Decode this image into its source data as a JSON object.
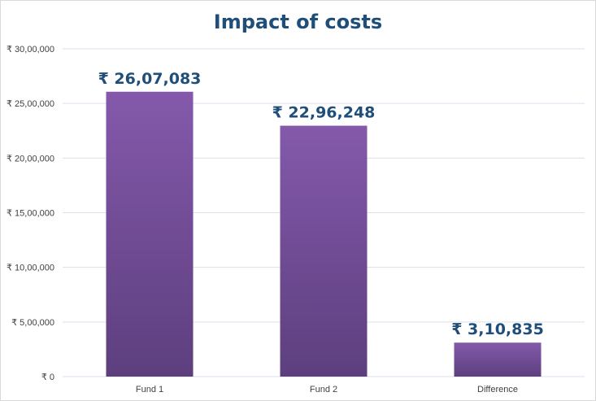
{
  "chart_data": {
    "type": "bar",
    "title": "Impact of costs",
    "categories": [
      "Fund 1",
      "Fund 2",
      "Difference"
    ],
    "values": [
      2607083,
      2296248,
      310835
    ],
    "data_labels": [
      "₹ 26,07,083",
      "₹ 22,96,248",
      "₹ 3,10,835"
    ],
    "y_ticks": [
      {
        "value": 0,
        "label": "₹ 0"
      },
      {
        "value": 500000,
        "label": "₹ 5,00,000"
      },
      {
        "value": 1000000,
        "label": "₹ 10,00,000"
      },
      {
        "value": 1500000,
        "label": "₹ 15,00,000"
      },
      {
        "value": 2000000,
        "label": "₹ 20,00,000"
      },
      {
        "value": 2500000,
        "label": "₹ 25,00,000"
      },
      {
        "value": 3000000,
        "label": "₹ 30,00,000"
      }
    ],
    "ylim": [
      0,
      3000000
    ],
    "grid": true,
    "legend": "none",
    "bar_color_top": "#8459ab",
    "bar_color_bottom": "#5d3f7e",
    "grid_color": "#d9e1ec"
  }
}
